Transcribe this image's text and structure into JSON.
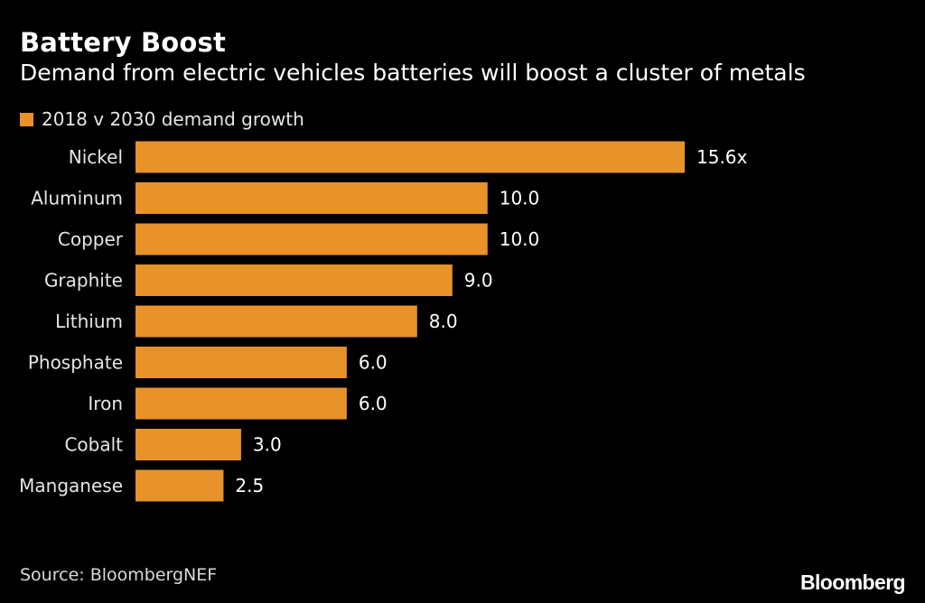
{
  "header": {
    "title": "Battery Boost",
    "subtitle": "Demand from electric vehicles batteries will boost a cluster of metals"
  },
  "legend": {
    "label": "2018 v 2030 demand growth"
  },
  "footer": {
    "source": "Source: BloombergNEF",
    "brand": "Bloomberg"
  },
  "colors": {
    "bar": "#e8922a",
    "background": "#000000",
    "text": "#ffffff"
  },
  "chart_data": {
    "type": "bar",
    "orientation": "horizontal",
    "title": "Battery Boost",
    "subtitle": "Demand from electric vehicles batteries will boost a cluster of metals",
    "xlabel": "",
    "ylabel": "",
    "xlim": [
      0,
      15.6
    ],
    "grid": false,
    "legend_position": "top-left",
    "categories": [
      "Nickel",
      "Aluminum",
      "Copper",
      "Graphite",
      "Lithium",
      "Phosphate",
      "Iron",
      "Cobalt",
      "Manganese"
    ],
    "series": [
      {
        "name": "2018 v 2030 demand growth",
        "values": [
          15.6,
          10.0,
          10.0,
          9.0,
          8.0,
          6.0,
          6.0,
          3.0,
          2.5
        ]
      }
    ],
    "data_labels": [
      "15.6x",
      "10.0",
      "10.0",
      "9.0",
      "8.0",
      "6.0",
      "6.0",
      "3.0",
      "2.5"
    ]
  }
}
